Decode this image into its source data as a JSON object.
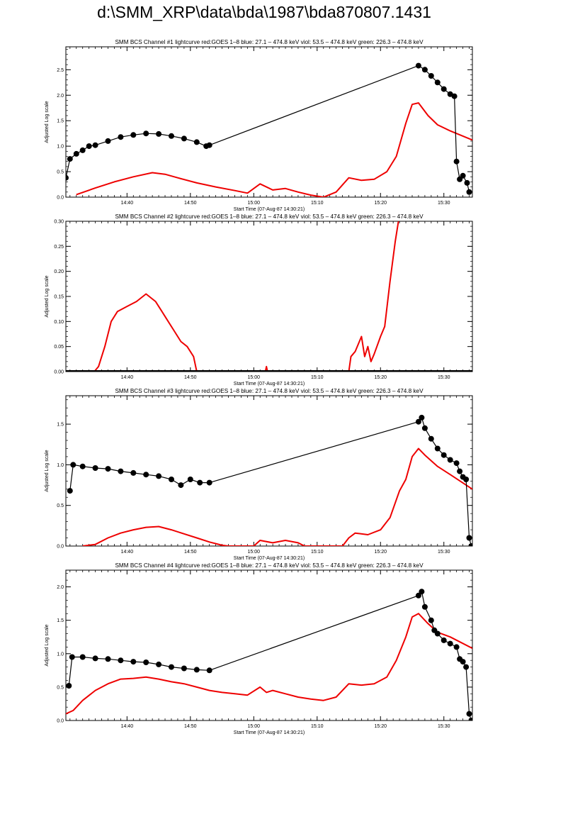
{
  "page_title": "d:\\SMM_XRP\\data\\bda\\1987\\bda870807.1431",
  "colors": {
    "goes": "#ee0000",
    "bcs": "#000000",
    "axis": "#000000"
  },
  "chart_data": [
    {
      "type": "line",
      "title": "SMM BCS Channel #1 lightcurve  red:GOES 1–8  blue: 27.1 – 474.8 keV  viol: 53.5 – 474.8 keV  green: 226.3 – 474.8 keV",
      "xlabel": "Start Time (07-Aug-87 14:30:21)",
      "ylabel": "Adjusted Log scale",
      "xlim": [
        "14:30:21",
        "15:34:30"
      ],
      "x_ticks": [
        "14:40",
        "14:50",
        "15:00",
        "15:10",
        "15:20",
        "15:30"
      ],
      "ylim": [
        0,
        2.95
      ],
      "y_ticks": [
        "0.0",
        "0.5",
        "1.0",
        "1.5",
        "2.0",
        "2.5"
      ],
      "grid": false,
      "series": [
        {
          "color": "#ee0000",
          "style": "line",
          "points": [
            [
              "14:32:00",
              0.05
            ],
            [
              "14:35:00",
              0.18
            ],
            [
              "14:38:00",
              0.3
            ],
            [
              "14:41:00",
              0.4
            ],
            [
              "14:44:00",
              0.48
            ],
            [
              "14:46:00",
              0.45
            ],
            [
              "14:48:00",
              0.38
            ],
            [
              "14:51:00",
              0.28
            ],
            [
              "14:54:00",
              0.2
            ],
            [
              "14:57:00",
              0.13
            ],
            [
              "14:59:00",
              0.08
            ],
            [
              "15:01:00",
              0.26
            ],
            [
              "15:03:00",
              0.14
            ],
            [
              "15:05:00",
              0.17
            ],
            [
              "15:07:00",
              0.1
            ],
            [
              "15:09:00",
              0.04
            ],
            [
              "15:11:00",
              0.0
            ],
            [
              "15:13:00",
              0.1
            ],
            [
              "15:15:00",
              0.38
            ],
            [
              "15:17:00",
              0.33
            ],
            [
              "15:19:00",
              0.35
            ],
            [
              "15:21:00",
              0.5
            ],
            [
              "15:22:30",
              0.8
            ],
            [
              "15:24:00",
              1.45
            ],
            [
              "15:25:00",
              1.82
            ],
            [
              "15:26:00",
              1.85
            ],
            [
              "15:27:30",
              1.6
            ],
            [
              "15:29:00",
              1.42
            ],
            [
              "15:31:00",
              1.3
            ],
            [
              "15:34:30",
              1.12
            ]
          ]
        },
        {
          "color": "#000000",
          "style": "line-markers",
          "points": [
            [
              "14:30:21",
              0.38
            ],
            [
              "14:31:00",
              0.75
            ],
            [
              "14:32:00",
              0.85
            ],
            [
              "14:33:00",
              0.92
            ],
            [
              "14:34:00",
              1.0
            ],
            [
              "14:35:00",
              1.02
            ],
            [
              "14:37:00",
              1.1
            ],
            [
              "14:39:00",
              1.18
            ],
            [
              "14:41:00",
              1.22
            ],
            [
              "14:43:00",
              1.25
            ],
            [
              "14:45:00",
              1.24
            ],
            [
              "14:47:00",
              1.2
            ],
            [
              "14:49:00",
              1.15
            ],
            [
              "14:51:00",
              1.08
            ],
            [
              "14:52:30",
              1.0
            ],
            [
              "14:53:00",
              1.02
            ],
            [
              "15:26:00",
              2.58
            ],
            [
              "15:27:00",
              2.5
            ],
            [
              "15:28:00",
              2.38
            ],
            [
              "15:29:00",
              2.25
            ],
            [
              "15:30:00",
              2.12
            ],
            [
              "15:31:00",
              2.02
            ],
            [
              "15:31:40",
              1.98
            ],
            [
              "15:32:00",
              0.7
            ],
            [
              "15:32:30",
              0.35
            ],
            [
              "15:33:00",
              0.42
            ],
            [
              "15:33:40",
              0.28
            ],
            [
              "15:34:00",
              0.1
            ]
          ]
        }
      ]
    },
    {
      "type": "line",
      "title": "SMM BCS Channel #2 lightcurve  red:GOES 1–8  blue: 27.1 – 474.8 keV  viol: 53.5 – 474.8 keV  green: 226.3 – 474.8 keV",
      "xlabel": "Start Time (07-Aug-87 14:30:21)",
      "ylabel": "Adjusted Log scale",
      "xlim": [
        "14:30:21",
        "15:34:30"
      ],
      "x_ticks": [
        "14:40",
        "14:50",
        "15:00",
        "15:10",
        "15:20",
        "15:30"
      ],
      "ylim": [
        0,
        0.3
      ],
      "y_ticks": [
        "0.00",
        "0.05",
        "0.10",
        "0.15",
        "0.20",
        "0.25",
        "0.30"
      ],
      "grid": false,
      "series": [
        {
          "color": "#ee0000",
          "style": "line",
          "points": [
            [
              "14:34:50",
              0.0
            ],
            [
              "14:35:30",
              0.01
            ],
            [
              "14:36:30",
              0.05
            ],
            [
              "14:37:30",
              0.1
            ],
            [
              "14:38:30",
              0.12
            ],
            [
              "14:40:00",
              0.13
            ],
            [
              "14:41:30",
              0.14
            ],
            [
              "14:43:00",
              0.155
            ],
            [
              "14:44:30",
              0.14
            ],
            [
              "14:45:30",
              0.12
            ],
            [
              "14:46:30",
              0.1
            ],
            [
              "14:47:30",
              0.08
            ],
            [
              "14:48:30",
              0.06
            ],
            [
              "14:49:30",
              0.05
            ],
            [
              "14:50:30",
              0.03
            ],
            [
              "14:51:00",
              0.0
            ],
            [
              "14:52:00",
              0.0
            ],
            [
              "15:01:50",
              0.0
            ],
            [
              "15:02:00",
              0.01
            ],
            [
              "15:02:10",
              0.0
            ],
            [
              "15:15:00",
              0.0
            ],
            [
              "15:15:20",
              0.03
            ],
            [
              "15:16:00",
              0.04
            ],
            [
              "15:17:00",
              0.07
            ],
            [
              "15:17:30",
              0.03
            ],
            [
              "15:18:00",
              0.05
            ],
            [
              "15:18:30",
              0.02
            ],
            [
              "15:19:00",
              0.035
            ],
            [
              "15:20:00",
              0.07
            ],
            [
              "15:20:40",
              0.09
            ],
            [
              "15:21:30",
              0.18
            ],
            [
              "15:22:20",
              0.26
            ],
            [
              "15:22:50",
              0.3
            ]
          ]
        },
        {
          "color": "#000000",
          "style": "baseline",
          "points": [
            [
              "14:30:21",
              0.0
            ],
            [
              "14:53:00",
              0.0
            ],
            [
              "15:26:00",
              0.0
            ],
            [
              "15:34:30",
              0.0
            ]
          ]
        }
      ]
    },
    {
      "type": "line",
      "title": "SMM BCS Channel #3 lightcurve  red:GOES 1–8  blue: 27.1 – 474.8 keV  viol: 53.5 – 474.8 keV  green: 226.3 – 474.8 keV",
      "xlabel": "Start Time (07-Aug-87 14:30:21)",
      "ylabel": "Adjusted Log scale",
      "xlim": [
        "14:30:21",
        "15:34:30"
      ],
      "x_ticks": [
        "14:40",
        "14:50",
        "15:00",
        "15:10",
        "15:20",
        "15:30"
      ],
      "ylim": [
        0,
        1.85
      ],
      "y_ticks": [
        "0.0",
        "0.5",
        "1.0",
        "1.5"
      ],
      "grid": false,
      "series": [
        {
          "color": "#ee0000",
          "style": "line",
          "points": [
            [
              "14:33:00",
              0.0
            ],
            [
              "14:35:00",
              0.02
            ],
            [
              "14:37:00",
              0.1
            ],
            [
              "14:39:00",
              0.16
            ],
            [
              "14:41:00",
              0.2
            ],
            [
              "14:43:00",
              0.23
            ],
            [
              "14:45:00",
              0.24
            ],
            [
              "14:47:00",
              0.2
            ],
            [
              "14:49:00",
              0.15
            ],
            [
              "14:51:00",
              0.1
            ],
            [
              "14:53:00",
              0.05
            ],
            [
              "14:55:00",
              0.01
            ],
            [
              "14:56:00",
              0.0
            ],
            [
              "14:58:00",
              0.0
            ],
            [
              "15:00:00",
              0.0
            ],
            [
              "15:01:00",
              0.07
            ],
            [
              "15:03:00",
              0.04
            ],
            [
              "15:05:00",
              0.07
            ],
            [
              "15:07:00",
              0.04
            ],
            [
              "15:08:00",
              0.0
            ],
            [
              "15:14:00",
              0.0
            ],
            [
              "15:15:00",
              0.1
            ],
            [
              "15:16:00",
              0.16
            ],
            [
              "15:18:00",
              0.14
            ],
            [
              "15:20:00",
              0.2
            ],
            [
              "15:21:30",
              0.35
            ],
            [
              "15:23:00",
              0.68
            ],
            [
              "15:24:00",
              0.82
            ],
            [
              "15:25:00",
              1.1
            ],
            [
              "15:26:00",
              1.2
            ],
            [
              "15:27:00",
              1.12
            ],
            [
              "15:29:00",
              0.98
            ],
            [
              "15:31:00",
              0.88
            ],
            [
              "15:34:30",
              0.7
            ]
          ]
        },
        {
          "color": "#000000",
          "style": "line-markers",
          "points": [
            [
              "14:31:00",
              0.68
            ],
            [
              "14:31:30",
              1.0
            ],
            [
              "14:33:00",
              0.98
            ],
            [
              "14:35:00",
              0.96
            ],
            [
              "14:37:00",
              0.95
            ],
            [
              "14:39:00",
              0.92
            ],
            [
              "14:41:00",
              0.9
            ],
            [
              "14:43:00",
              0.88
            ],
            [
              "14:45:00",
              0.86
            ],
            [
              "14:47:00",
              0.82
            ],
            [
              "14:48:30",
              0.75
            ],
            [
              "14:50:00",
              0.82
            ],
            [
              "14:51:30",
              0.78
            ],
            [
              "14:53:00",
              0.78
            ],
            [
              "15:26:00",
              1.53
            ],
            [
              "15:26:30",
              1.58
            ],
            [
              "15:27:00",
              1.45
            ],
            [
              "15:28:00",
              1.32
            ],
            [
              "15:29:00",
              1.2
            ],
            [
              "15:30:00",
              1.12
            ],
            [
              "15:31:00",
              1.06
            ],
            [
              "15:32:00",
              1.02
            ],
            [
              "15:32:30",
              0.92
            ],
            [
              "15:33:00",
              0.85
            ],
            [
              "15:33:30",
              0.82
            ],
            [
              "15:34:00",
              0.1
            ],
            [
              "15:34:20",
              0.0
            ]
          ]
        }
      ]
    },
    {
      "type": "line",
      "title": "SMM BCS Channel #4 lightcurve  red:GOES 1–8  blue: 27.1 – 474.8 keV  viol: 53.5 – 474.8 keV  green: 226.3 – 474.8 keV",
      "xlabel": "Start Time (07-Aug-87 14:30:21)",
      "ylabel": "Adjusted Log scale",
      "xlim": [
        "14:30:21",
        "15:34:30"
      ],
      "x_ticks": [
        "14:40",
        "14:50",
        "15:00",
        "15:10",
        "15:20",
        "15:30"
      ],
      "ylim": [
        0,
        2.25
      ],
      "y_ticks": [
        "0.0",
        "0.5",
        "1.0",
        "1.5",
        "2.0"
      ],
      "grid": false,
      "series": [
        {
          "color": "#ee0000",
          "style": "line",
          "points": [
            [
              "14:30:21",
              0.1
            ],
            [
              "14:31:30",
              0.15
            ],
            [
              "14:33:00",
              0.3
            ],
            [
              "14:35:00",
              0.45
            ],
            [
              "14:37:00",
              0.55
            ],
            [
              "14:39:00",
              0.62
            ],
            [
              "14:41:00",
              0.63
            ],
            [
              "14:43:00",
              0.65
            ],
            [
              "14:45:00",
              0.62
            ],
            [
              "14:47:00",
              0.58
            ],
            [
              "14:49:00",
              0.55
            ],
            [
              "14:51:00",
              0.5
            ],
            [
              "14:53:00",
              0.45
            ],
            [
              "14:55:00",
              0.42
            ],
            [
              "14:57:00",
              0.4
            ],
            [
              "14:59:00",
              0.38
            ],
            [
              "15:01:00",
              0.5
            ],
            [
              "15:02:00",
              0.42
            ],
            [
              "15:03:00",
              0.45
            ],
            [
              "15:05:00",
              0.4
            ],
            [
              "15:07:00",
              0.35
            ],
            [
              "15:09:00",
              0.32
            ],
            [
              "15:11:00",
              0.3
            ],
            [
              "15:13:00",
              0.35
            ],
            [
              "15:15:00",
              0.55
            ],
            [
              "15:17:00",
              0.53
            ],
            [
              "15:19:00",
              0.55
            ],
            [
              "15:21:00",
              0.65
            ],
            [
              "15:22:30",
              0.9
            ],
            [
              "15:24:00",
              1.25
            ],
            [
              "15:25:00",
              1.55
            ],
            [
              "15:26:00",
              1.6
            ],
            [
              "15:27:30",
              1.45
            ],
            [
              "15:29:00",
              1.32
            ],
            [
              "15:31:00",
              1.25
            ],
            [
              "15:34:30",
              1.08
            ]
          ]
        },
        {
          "color": "#000000",
          "style": "line-markers",
          "points": [
            [
              "14:30:50",
              0.52
            ],
            [
              "14:31:20",
              0.95
            ],
            [
              "14:33:00",
              0.95
            ],
            [
              "14:35:00",
              0.93
            ],
            [
              "14:37:00",
              0.92
            ],
            [
              "14:39:00",
              0.9
            ],
            [
              "14:41:00",
              0.88
            ],
            [
              "14:43:00",
              0.87
            ],
            [
              "14:45:00",
              0.84
            ],
            [
              "14:47:00",
              0.8
            ],
            [
              "14:49:00",
              0.78
            ],
            [
              "14:51:00",
              0.76
            ],
            [
              "14:53:00",
              0.75
            ],
            [
              "15:26:00",
              1.87
            ],
            [
              "15:26:30",
              1.93
            ],
            [
              "15:27:00",
              1.7
            ],
            [
              "15:28:00",
              1.5
            ],
            [
              "15:28:30",
              1.35
            ],
            [
              "15:29:00",
              1.3
            ],
            [
              "15:30:00",
              1.2
            ],
            [
              "15:31:00",
              1.15
            ],
            [
              "15:32:00",
              1.1
            ],
            [
              "15:32:30",
              0.92
            ],
            [
              "15:33:00",
              0.88
            ],
            [
              "15:33:30",
              0.8
            ],
            [
              "15:34:00",
              0.1
            ],
            [
              "15:34:20",
              0.0
            ]
          ]
        }
      ]
    }
  ]
}
